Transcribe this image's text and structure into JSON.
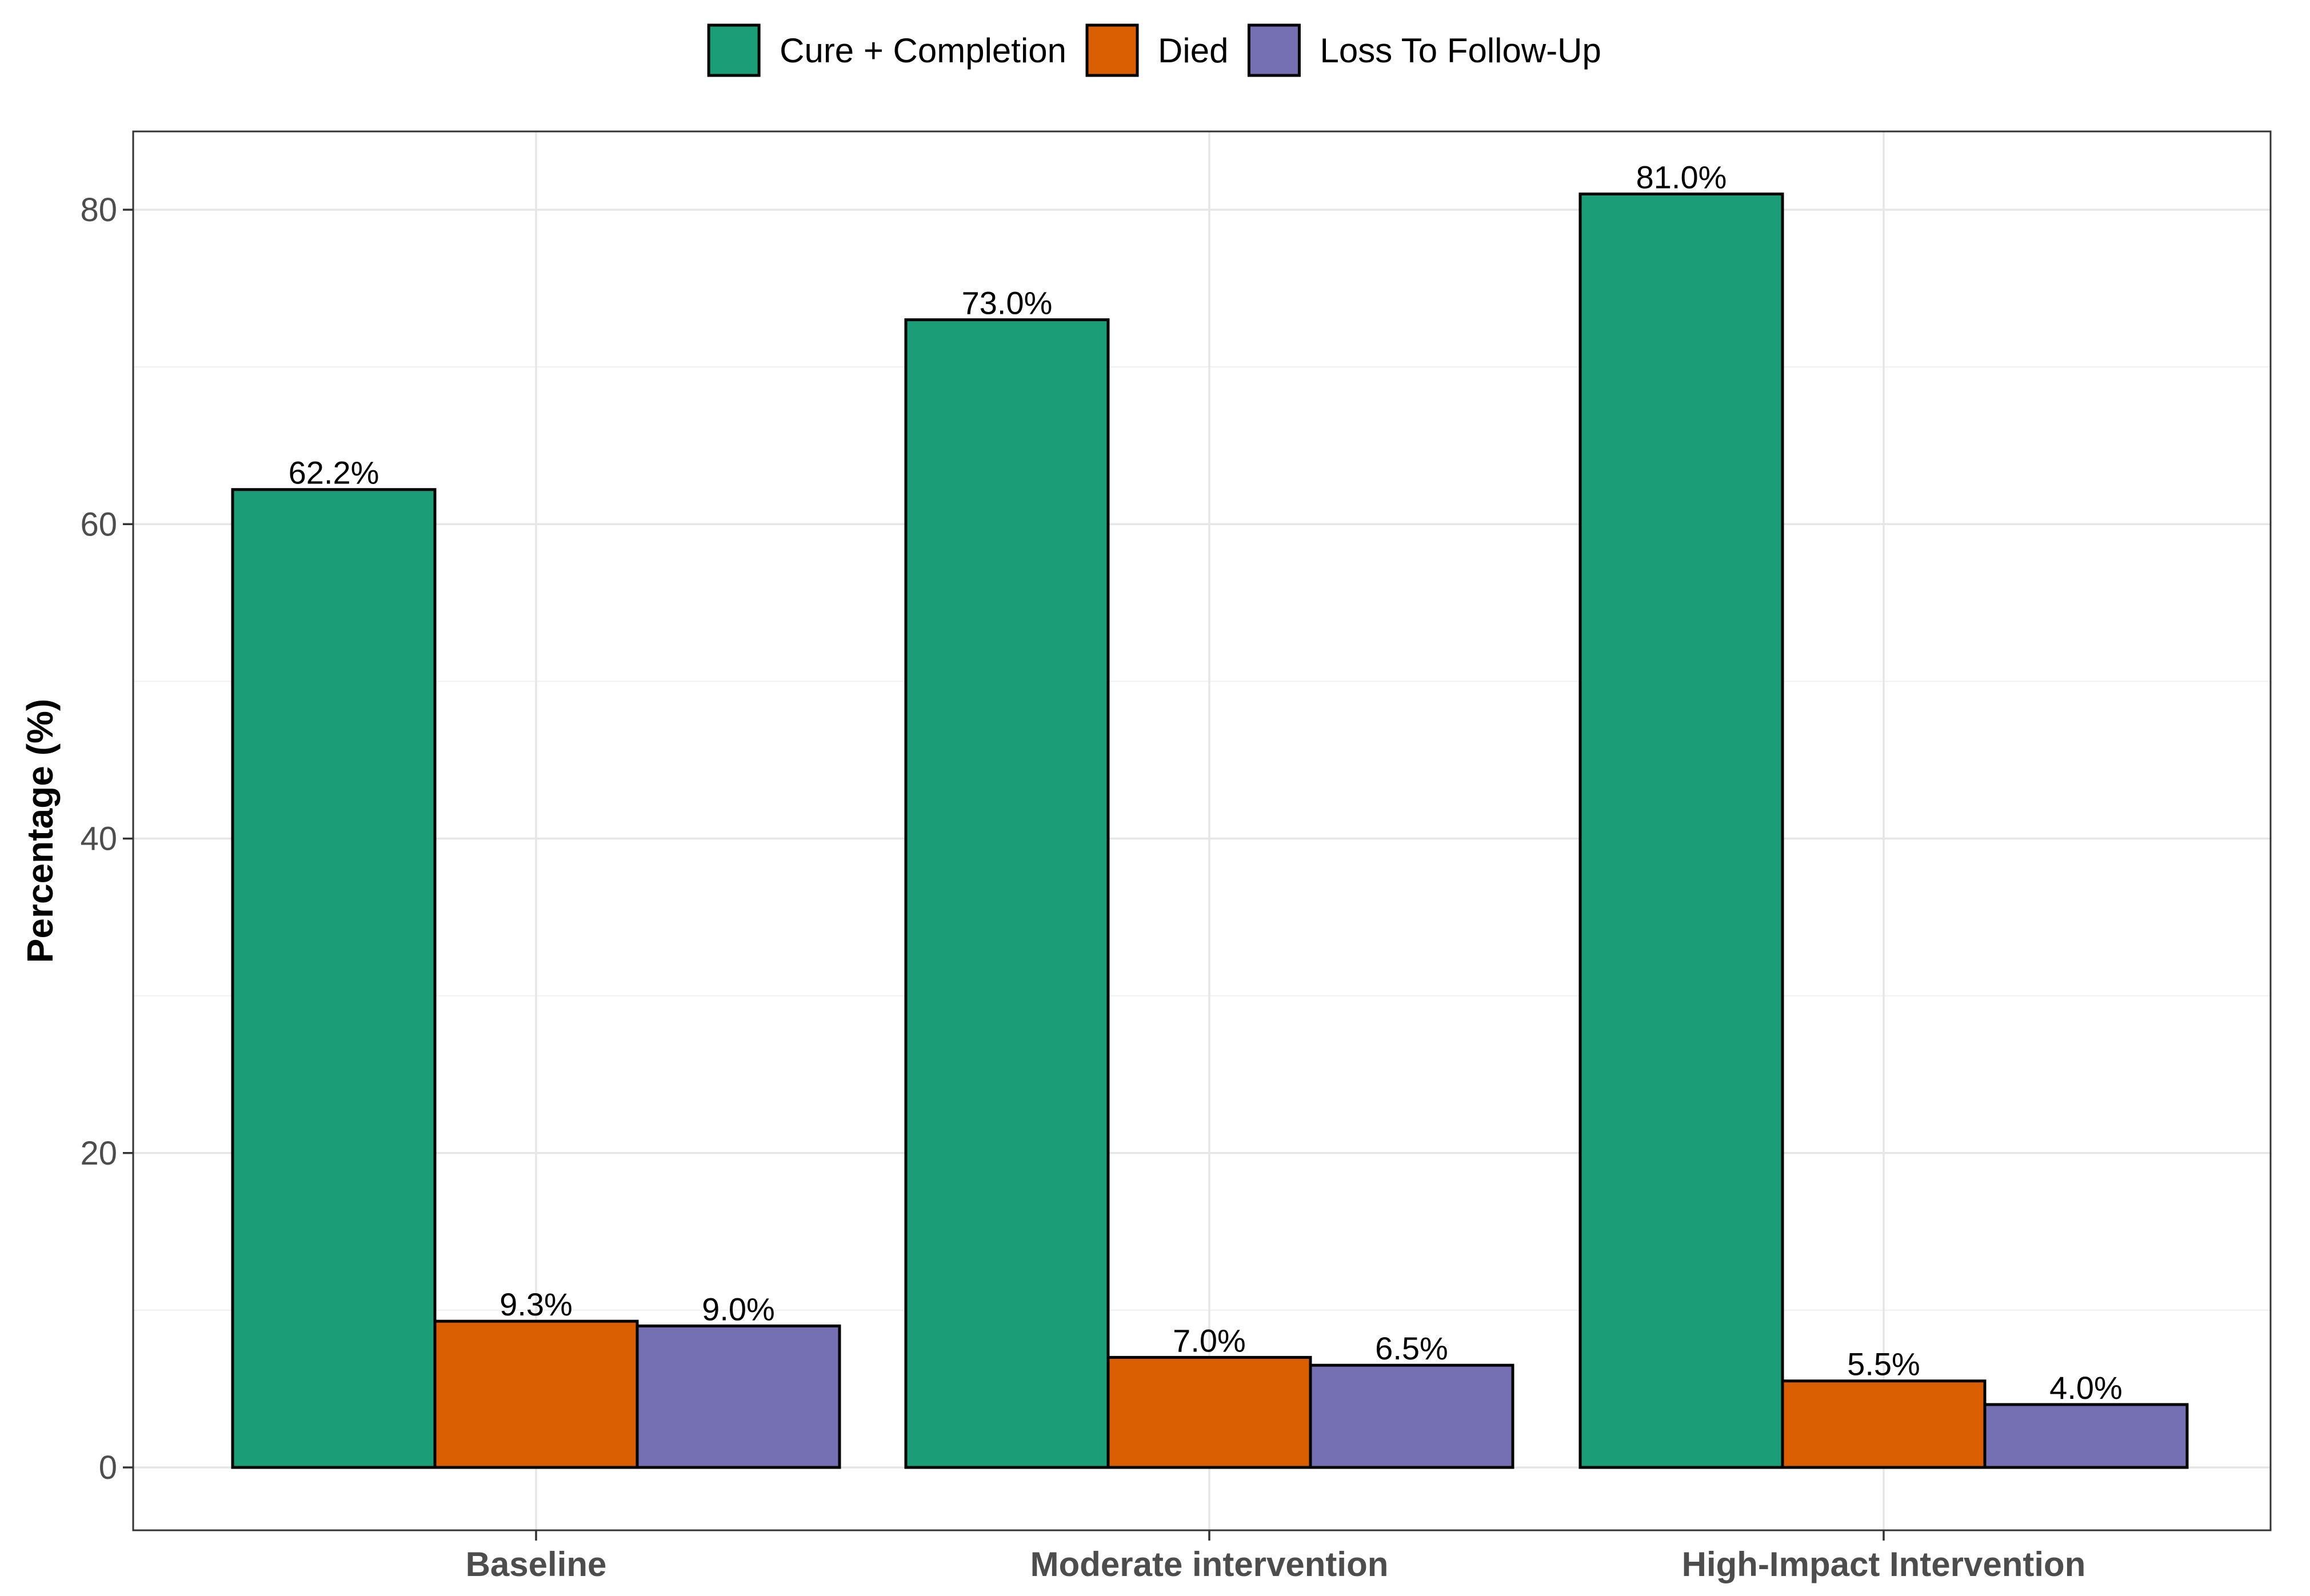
{
  "chart_data": {
    "type": "bar",
    "title": "",
    "xlabel": "",
    "ylabel": "Percentage (%)",
    "categories": [
      "Baseline",
      "Moderate intervention",
      "High-Impact Intervention"
    ],
    "series": [
      {
        "name": "Cure + Completion",
        "color": "#1b9e77",
        "values": [
          62.2,
          73.0,
          81.0
        ],
        "labels": [
          "62.2%",
          "73.0%",
          "81.0%"
        ]
      },
      {
        "name": "Died",
        "color": "#d95f02",
        "values": [
          9.3,
          7.0,
          5.5
        ],
        "labels": [
          "9.3%",
          "7.0%",
          "5.5%"
        ]
      },
      {
        "name": "Loss To Follow-Up",
        "color": "#7570b3",
        "values": [
          9.0,
          6.5,
          4.0
        ],
        "labels": [
          "9.0%",
          "6.5%",
          "4.0%"
        ]
      }
    ],
    "ylim": [
      -4,
      85
    ],
    "yticks": [
      0,
      20,
      40,
      60,
      80
    ],
    "ytick_labels": [
      "0",
      "20",
      "40",
      "60",
      "80"
    ],
    "grid": true,
    "legend_position": "top"
  }
}
